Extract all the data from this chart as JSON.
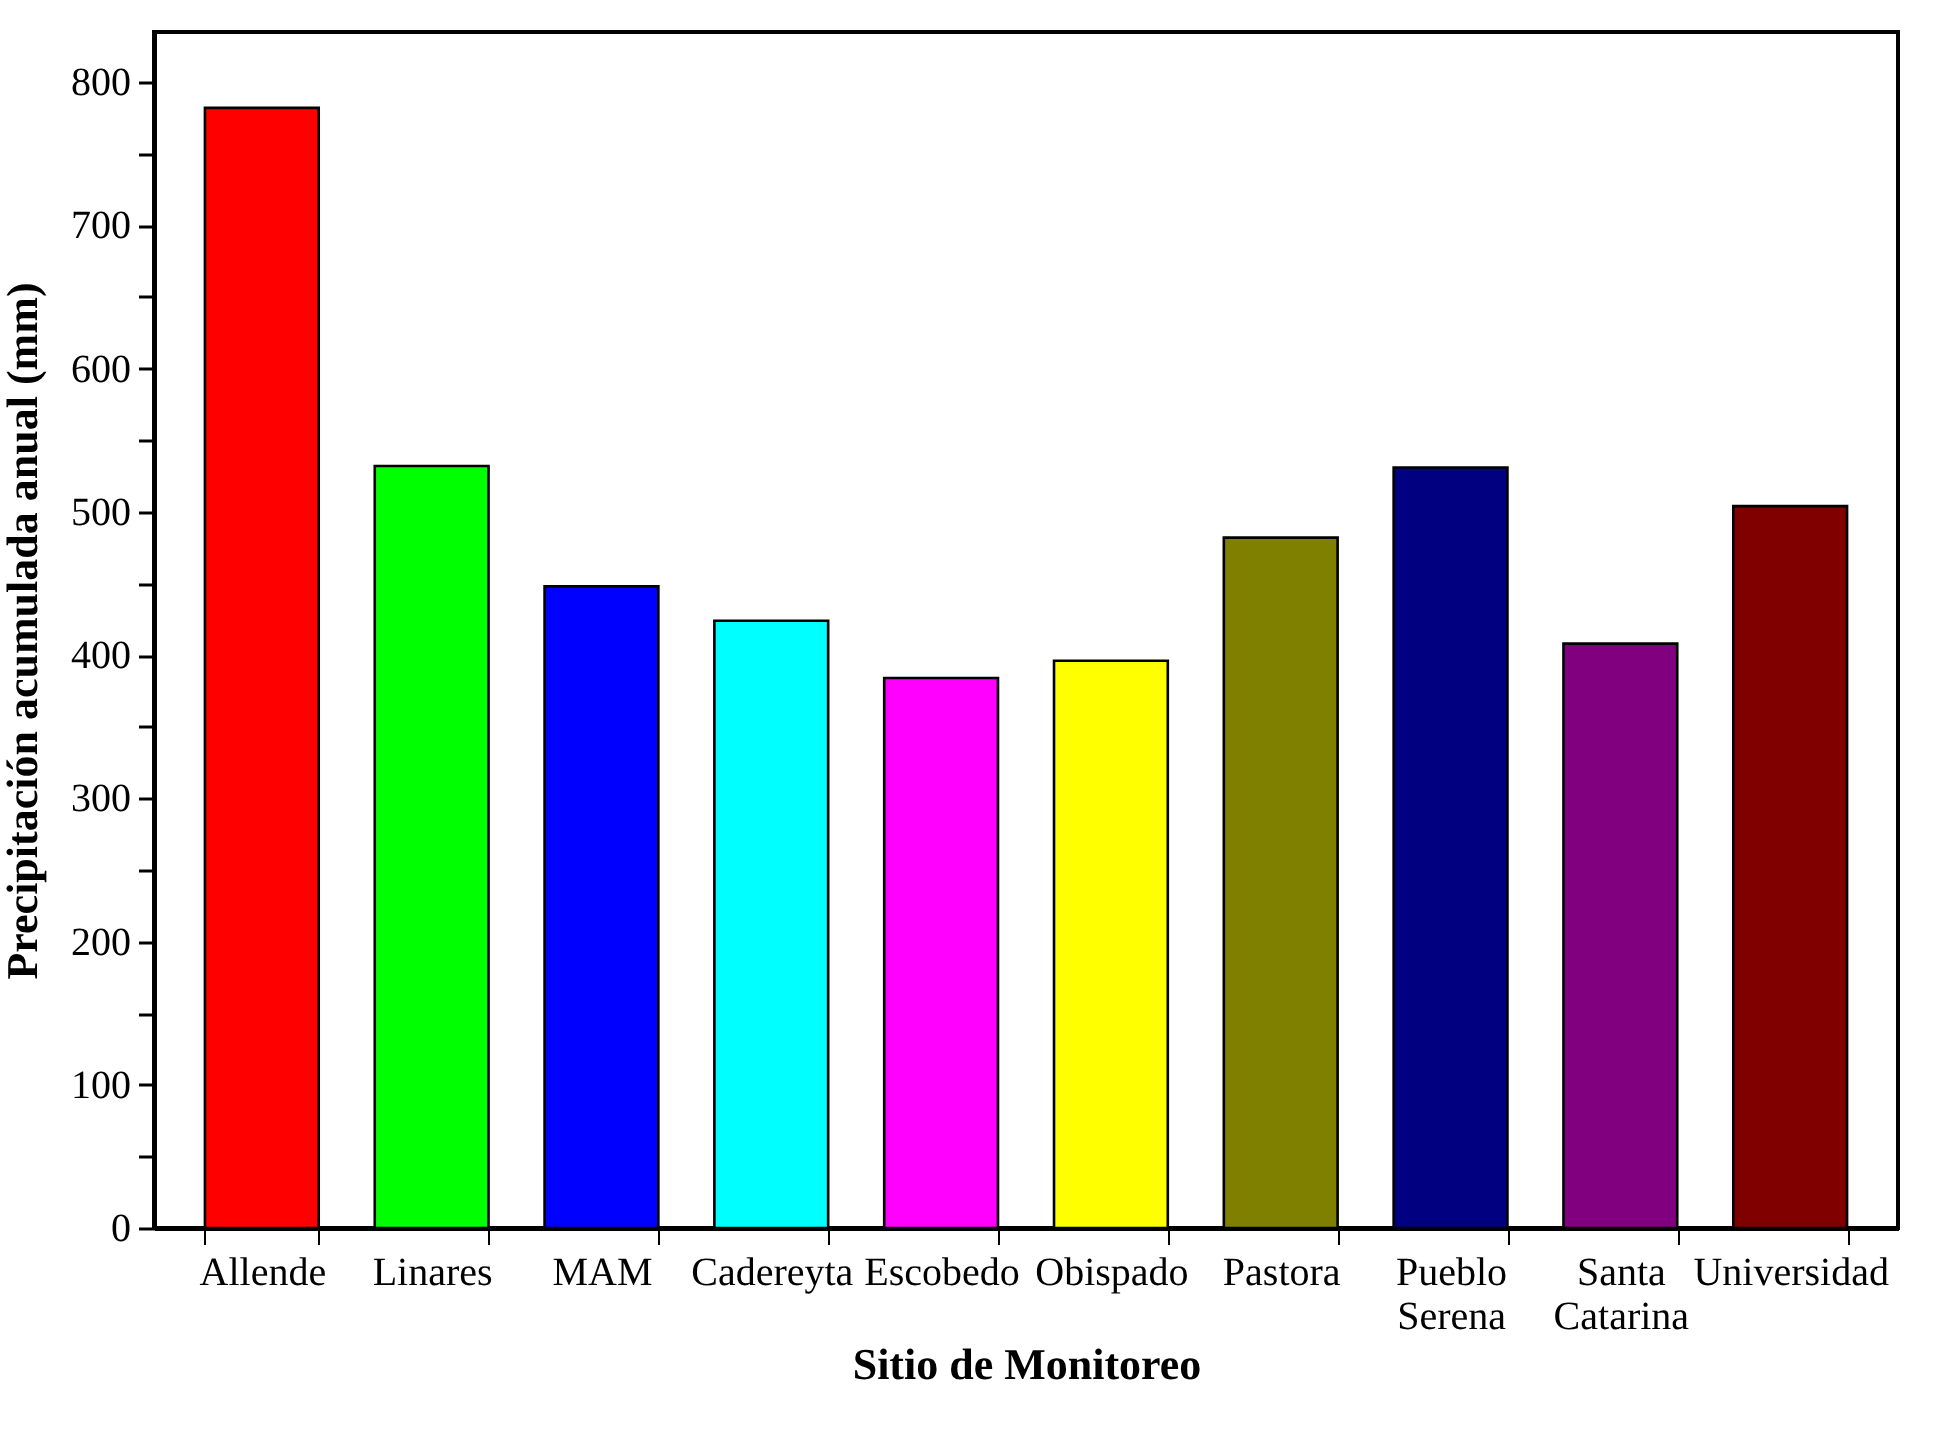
{
  "chart_data": {
    "type": "bar",
    "xlabel": "Sitio de Monitoreo",
    "ylabel": "Precipitación acumulada anual (mm)",
    "categories": [
      "Allende",
      "Linares",
      "MAM",
      "Cadereyta",
      "Escobedo",
      "Obispado",
      "Pastora",
      "Pueblo Serena",
      "Santa Catarina",
      "Universidad"
    ],
    "values": [
      782,
      532,
      448,
      424,
      384,
      396,
      482,
      531,
      408,
      504
    ],
    "colors": [
      "#ff0000",
      "#00ff00",
      "#0000ff",
      "#00ffff",
      "#ff00ff",
      "#ffff00",
      "#808000",
      "#000080",
      "#800080",
      "#800000"
    ],
    "ylim": [
      0,
      835
    ],
    "yticks": [
      0,
      {
        "value": 50,
        "label": null
      },
      100,
      {
        "value": 150,
        "label": null
      },
      200,
      {
        "value": 250,
        "label": null
      },
      300,
      {
        "value": 350,
        "label": null
      },
      400,
      {
        "value": 450,
        "label": null
      },
      500,
      {
        "value": 550,
        "label": null
      },
      600,
      {
        "value": 650,
        "label": null
      },
      700,
      {
        "value": 750,
        "label": null
      },
      800
    ],
    "grid": false,
    "legend": false
  }
}
